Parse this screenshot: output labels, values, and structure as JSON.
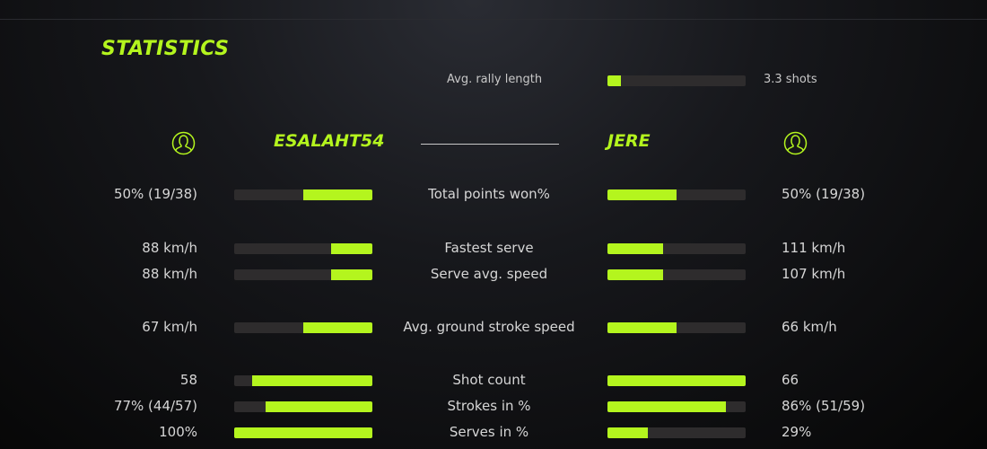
{
  "title": "STATISTICS",
  "accent": "#b4f51e",
  "rally": {
    "label": "Avg. rally length",
    "value": "3.3 shots",
    "fraction": 0.1
  },
  "players": {
    "left": {
      "name": "ESALAHT54",
      "icon": "user-icon"
    },
    "right": {
      "name": "JERE",
      "icon": "user-icon"
    }
  },
  "rows": [
    {
      "label": "Total points won%",
      "left": "50% (19/38)",
      "right": "50% (19/38)",
      "left_fraction": 0.5,
      "right_fraction": 0.5
    },
    {
      "label": "Fastest serve",
      "left": "88 km/h",
      "right": "111 km/h",
      "left_fraction": 0.3,
      "right_fraction": 0.4
    },
    {
      "label": "Serve avg. speed",
      "left": "88 km/h",
      "right": "107 km/h",
      "left_fraction": 0.3,
      "right_fraction": 0.4
    },
    {
      "label": "Avg. ground stroke speed",
      "left": "67 km/h",
      "right": "66 km/h",
      "left_fraction": 0.5,
      "right_fraction": 0.5
    },
    {
      "label": "Shot count",
      "left": "58",
      "right": "66",
      "left_fraction": 0.87,
      "right_fraction": 1.0
    },
    {
      "label": "Strokes in %",
      "left": "77% (44/57)",
      "right": "86% (51/59)",
      "left_fraction": 0.77,
      "right_fraction": 0.86
    },
    {
      "label": "Serves in %",
      "left": "100%",
      "right": "29%",
      "left_fraction": 1.0,
      "right_fraction": 0.29
    }
  ]
}
